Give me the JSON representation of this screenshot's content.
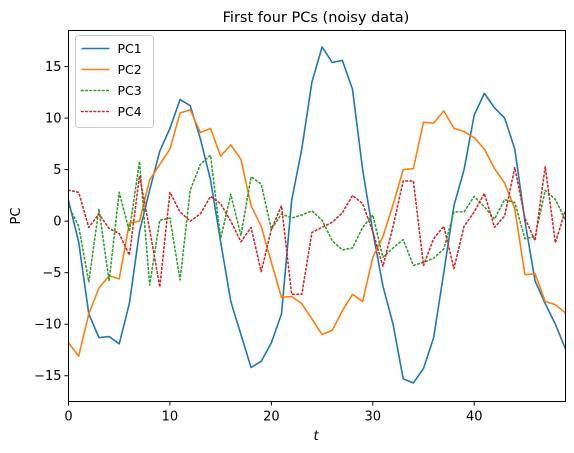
{
  "chart_data": {
    "type": "line",
    "title": "First four PCs (noisy data)",
    "xlabel": "t",
    "ylabel": "PC",
    "xlim": [
      0,
      49
    ],
    "ylim": [
      -17.5,
      18.5
    ],
    "xticks": [
      0,
      10,
      20,
      30,
      40
    ],
    "yticks": [
      -15,
      -10,
      -5,
      0,
      5,
      10,
      15
    ],
    "grid": false,
    "legend_position": "top-left",
    "x": [
      0,
      1,
      2,
      3,
      4,
      5,
      6,
      7,
      8,
      9,
      10,
      11,
      12,
      13,
      14,
      15,
      16,
      17,
      18,
      19,
      20,
      21,
      22,
      23,
      24,
      25,
      26,
      27,
      28,
      29,
      30,
      31,
      32,
      33,
      34,
      35,
      36,
      37,
      38,
      39,
      40,
      41,
      42,
      43,
      44,
      45,
      46,
      47,
      48,
      49
    ],
    "series": [
      {
        "name": "PC1",
        "color": "#1f77b4",
        "style": "solid",
        "values": [
          2.0,
          -2.0,
          -9.0,
          -11.3,
          -11.2,
          -11.9,
          -8.0,
          -1.0,
          3.0,
          6.8,
          9.0,
          11.8,
          11.2,
          8.0,
          4.0,
          -2.0,
          -7.8,
          -11.0,
          -14.2,
          -13.6,
          -11.8,
          -9.0,
          2.0,
          7.0,
          13.5,
          16.9,
          15.4,
          15.6,
          12.8,
          5.0,
          -1.0,
          -6.3,
          -10.0,
          -15.3,
          -15.7,
          -14.3,
          -11.3,
          -5.0,
          1.5,
          5.0,
          10.3,
          12.4,
          11.0,
          10.0,
          7.0,
          0.0,
          -5.8,
          -8.0,
          -10.0,
          -12.4
        ]
      },
      {
        "name": "PC2",
        "color": "#ff7f0e",
        "style": "solid",
        "values": [
          -11.8,
          -13.1,
          -9.0,
          -6.5,
          -5.3,
          -5.6,
          -0.2,
          0.0,
          4.0,
          5.5,
          7.0,
          10.5,
          10.8,
          8.6,
          9.0,
          6.3,
          7.4,
          6.0,
          1.5,
          -0.5,
          -4.0,
          -7.4,
          -7.3,
          -8.0,
          -9.5,
          -11.0,
          -10.6,
          -8.7,
          -7.1,
          -7.8,
          -3.5,
          -1.5,
          1.6,
          5.0,
          5.1,
          9.6,
          9.5,
          10.7,
          9.0,
          8.7,
          8.1,
          7.0,
          5.1,
          3.7,
          1.2,
          -5.2,
          -5.1,
          -7.8,
          -8.1,
          -8.9
        ]
      },
      {
        "name": "PC3",
        "color": "#2ca02c",
        "style": "dotted",
        "values": [
          1.5,
          -0.5,
          -5.9,
          1.2,
          -5.8,
          2.8,
          -1.0,
          5.8,
          -6.2,
          0.1,
          0.3,
          -5.7,
          3.0,
          5.5,
          6.4,
          -1.7,
          2.6,
          -1.4,
          4.3,
          3.6,
          -0.8,
          0.7,
          0.3,
          0.6,
          1.0,
          0.1,
          -1.9,
          -2.8,
          -2.6,
          -0.6,
          0.6,
          -3.5,
          -2.6,
          -1.8,
          -4.3,
          -4.0,
          -3.6,
          -2.7,
          0.9,
          0.9,
          2.4,
          1.4,
          0.2,
          2.1,
          1.8,
          -1.7,
          -1.5,
          3.0,
          2.1,
          0.1
        ]
      },
      {
        "name": "PC4",
        "color": "#d62728",
        "style": "dotted",
        "values": [
          3.0,
          2.8,
          -0.6,
          0.7,
          -0.7,
          -1.2,
          -3.3,
          4.4,
          -0.8,
          -6.4,
          2.8,
          0.9,
          0.0,
          0.7,
          2.4,
          1.7,
          0.0,
          -2.0,
          -0.6,
          -4.9,
          -0.8,
          1.5,
          -7.1,
          -7.1,
          -1.1,
          -0.6,
          -0.1,
          0.8,
          2.5,
          1.7,
          -1.0,
          -4.4,
          -0.5,
          3.9,
          3.9,
          -4.3,
          -1.7,
          -0.5,
          -4.6,
          -0.5,
          0.9,
          2.7,
          -0.6,
          0.5,
          5.2,
          0.3,
          -1.9,
          5.3,
          -2.1,
          1.1
        ]
      }
    ]
  }
}
